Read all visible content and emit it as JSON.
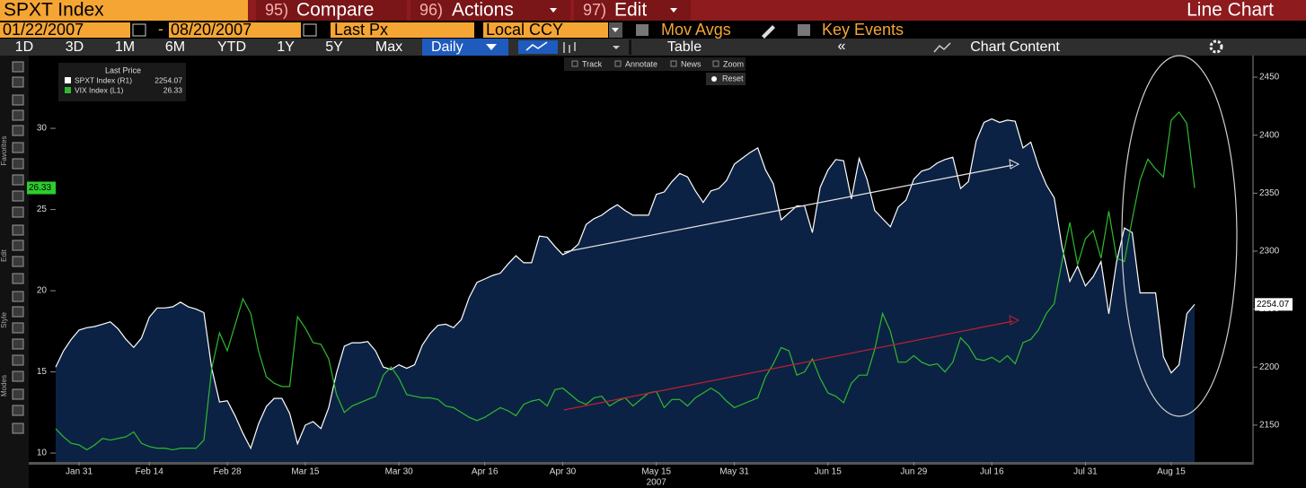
{
  "header": {
    "ticker": "SPXT Index",
    "menu": [
      {
        "num": "95)",
        "label": "Compare"
      },
      {
        "num": "96)",
        "label": "Actions"
      },
      {
        "num": "97)",
        "label": "Edit"
      }
    ],
    "view": "Line Chart"
  },
  "controls": {
    "start_date": "01/22/2007",
    "separator": "-",
    "end_date": "08/20/2007",
    "field": "Last Px",
    "currency": "Local CCY",
    "mov_avgs": "Mov Avgs",
    "key_events": "Key Events"
  },
  "toolbar": {
    "periods": [
      "1D",
      "3D",
      "1M",
      "6M",
      "YTD",
      "1Y",
      "5Y",
      "Max"
    ],
    "frequency": "Daily",
    "table": "Table",
    "chart_content": "Chart Content"
  },
  "chart_tools": {
    "items": [
      "Track",
      "Annotate",
      "News",
      "Zoom"
    ],
    "reset": "Reset"
  },
  "sidebar_labels": [
    "Favorites",
    "Edit",
    "Style",
    "Modes"
  ],
  "chart_data": {
    "type": "line",
    "legend_title": "Last Price",
    "x_year": "2007",
    "categories": [
      null,
      null,
      null,
      "Jan 31",
      null,
      null,
      null,
      null,
      null,
      null,
      null,
      null,
      "Feb 14",
      null,
      null,
      null,
      null,
      null,
      null,
      null,
      null,
      null,
      "Feb 28",
      null,
      null,
      null,
      null,
      null,
      null,
      null,
      null,
      null,
      "Mar 15",
      null,
      null,
      null,
      null,
      null,
      null,
      null,
      null,
      null,
      null,
      null,
      "Mar 30",
      null,
      null,
      null,
      null,
      null,
      null,
      null,
      null,
      null,
      null,
      "Apr 16",
      null,
      null,
      null,
      null,
      null,
      null,
      null,
      null,
      null,
      "Apr 30",
      null,
      null,
      null,
      null,
      null,
      null,
      null,
      null,
      null,
      null,
      null,
      "May 15",
      null,
      null,
      null,
      null,
      null,
      null,
      null,
      null,
      null,
      "May 31",
      null,
      null,
      null,
      null,
      null,
      null,
      null,
      null,
      null,
      null,
      null,
      "Jun 15",
      null,
      null,
      null,
      null,
      null,
      null,
      null,
      null,
      null,
      null,
      "Jun 29",
      null,
      null,
      null,
      null,
      null,
      null,
      null,
      null,
      null,
      "Jul 16",
      null,
      null,
      null,
      null,
      null,
      null,
      null,
      null,
      null,
      null,
      null,
      "Jul 31",
      null,
      null,
      null,
      null,
      null,
      null,
      null,
      null,
      null,
      null,
      "Aug 15",
      null,
      null,
      null
    ],
    "series": [
      {
        "name": "SPXT Index (R1)",
        "axis": "y2",
        "color": "#ffffff",
        "fill": "#0c2244",
        "values": [
          2200,
          2214,
          2224,
          2232,
          2234,
          2235,
          2237,
          2239,
          2233,
          2224,
          2217,
          2225,
          2243,
          2251,
          2251,
          2252,
          2256,
          2252,
          2250,
          2247,
          2199,
          2170,
          2171,
          2158,
          2143,
          2130,
          2151,
          2166,
          2173,
          2173,
          2160,
          2134,
          2150,
          2153,
          2147,
          2165,
          2195,
          2218,
          2221,
          2221,
          2222,
          2214,
          2200,
          2198,
          2202,
          2199,
          2202,
          2219,
          2229,
          2236,
          2237,
          2234,
          2241,
          2260,
          2273,
          2276,
          2279,
          2281,
          2289,
          2296,
          2290,
          2290,
          2313,
          2312,
          2304,
          2297,
          2300,
          2306,
          2323,
          2328,
          2331,
          2336,
          2340,
          2335,
          2331,
          2331,
          2331,
          2349,
          2351,
          2360,
          2367,
          2364,
          2352,
          2342,
          2352,
          2354,
          2361,
          2375,
          2380,
          2385,
          2389,
          2370,
          2358,
          2327,
          2333,
          2339,
          2339,
          2316,
          2355,
          2370,
          2379,
          2378,
          2345,
          2380,
          2362,
          2335,
          2328,
          2321,
          2338,
          2344,
          2362,
          2369,
          2371,
          2376,
          2379,
          2381,
          2354,
          2360,
          2395,
          2411,
          2414,
          2411,
          2413,
          2412,
          2389,
          2394,
          2373,
          2357,
          2346,
          2304,
          2274,
          2287,
          2270,
          2278,
          2291,
          2246,
          2291,
          2320,
          2316,
          2264,
          2264,
          2264,
          2209,
          2195,
          2202,
          2246,
          2254.07
        ]
      },
      {
        "name": "VIX Index (L1)",
        "axis": "y",
        "color": "#2dbb2d",
        "values": [
          11.5,
          11.0,
          10.6,
          10.5,
          10.2,
          10.5,
          10.9,
          10.8,
          10.9,
          11.0,
          11.3,
          10.6,
          10.4,
          10.3,
          10.3,
          10.2,
          10.3,
          10.3,
          10.3,
          10.8,
          15.2,
          17.4,
          16.3,
          17.9,
          19.5,
          18.6,
          16.3,
          14.7,
          14.3,
          14.1,
          14.1,
          18.4,
          17.7,
          16.8,
          16.7,
          15.8,
          13.6,
          12.5,
          12.9,
          13.1,
          13.3,
          13.5,
          14.8,
          15.3,
          14.6,
          13.6,
          13.5,
          13.4,
          13.4,
          13.3,
          12.9,
          12.8,
          12.5,
          12.2,
          12.0,
          12.2,
          12.5,
          12.8,
          12.6,
          12.3,
          13.0,
          13.2,
          13.3,
          12.9,
          13.9,
          14.0,
          13.6,
          13.2,
          13.0,
          13.4,
          13.5,
          12.9,
          13.2,
          13.4,
          12.9,
          13.3,
          13.7,
          13.8,
          12.8,
          13.3,
          13.3,
          12.9,
          13.4,
          13.7,
          14.0,
          13.7,
          13.2,
          12.8,
          13.0,
          13.2,
          13.4,
          14.7,
          15.5,
          16.5,
          16.3,
          14.8,
          15.0,
          15.8,
          14.6,
          13.7,
          13.5,
          13.1,
          14.3,
          14.8,
          14.8,
          16.4,
          18.6,
          17.5,
          15.6,
          15.6,
          16.0,
          15.6,
          15.4,
          15.5,
          15.0,
          15.6,
          17.1,
          16.6,
          15.8,
          15.7,
          15.9,
          15.6,
          16.0,
          15.5,
          16.8,
          17.0,
          17.6,
          18.6,
          19.2,
          21.8,
          24.2,
          21.6,
          23.2,
          23.7,
          22.0,
          24.9,
          22.0,
          21.8,
          24.4,
          26.8,
          28.1,
          27.5,
          27.0,
          30.5,
          31.0,
          30.3,
          26.33
        ]
      }
    ],
    "ylim": [
      9.45,
      34.48
    ],
    "yticks": [
      10,
      15,
      20,
      25,
      30
    ],
    "y2lim": [
      2118.2,
      2468.6
    ],
    "y2ticks": [
      2150,
      2200,
      2250,
      2300,
      2350,
      2400,
      2450
    ]
  }
}
